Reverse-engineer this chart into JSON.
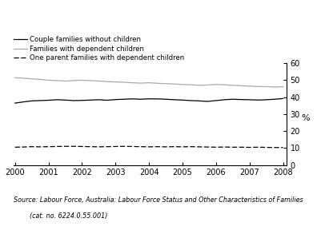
{
  "ylabel": "%",
  "xlim": [
    2000,
    2008
  ],
  "ylim": [
    0,
    60
  ],
  "yticks": [
    0,
    10,
    20,
    30,
    40,
    50,
    60
  ],
  "xticks": [
    2000,
    2001,
    2002,
    2003,
    2004,
    2005,
    2006,
    2007,
    2008
  ],
  "years": [
    2000,
    2000.25,
    2000.5,
    2000.75,
    2001,
    2001.25,
    2001.5,
    2001.75,
    2002,
    2002.25,
    2002.5,
    2002.75,
    2003,
    2003.25,
    2003.5,
    2003.75,
    2004,
    2004.25,
    2004.5,
    2004.75,
    2005,
    2005.25,
    2005.5,
    2005.75,
    2006,
    2006.25,
    2006.5,
    2006.75,
    2007,
    2007.25,
    2007.5,
    2007.75,
    2008
  ],
  "couple_no_children": [
    36.5,
    37.2,
    37.8,
    38.0,
    38.2,
    38.5,
    38.3,
    38.0,
    38.1,
    38.3,
    38.5,
    38.2,
    38.6,
    38.8,
    39.0,
    38.8,
    39.0,
    39.0,
    38.8,
    38.5,
    38.3,
    38.0,
    37.8,
    37.5,
    38.0,
    38.5,
    38.8,
    38.6,
    38.5,
    38.3,
    38.5,
    38.8,
    39.2
  ],
  "families_dependent": [
    51.5,
    51.2,
    50.8,
    50.5,
    50.0,
    49.8,
    49.5,
    49.8,
    50.0,
    49.8,
    49.5,
    49.2,
    49.0,
    48.8,
    48.5,
    48.3,
    48.5,
    48.2,
    48.0,
    47.8,
    47.5,
    47.3,
    47.0,
    47.2,
    47.5,
    47.3,
    47.0,
    46.8,
    46.5,
    46.3,
    46.2,
    46.0,
    46.2
  ],
  "one_parent": [
    10.5,
    10.6,
    10.8,
    10.7,
    10.8,
    10.9,
    11.0,
    11.0,
    10.9,
    10.8,
    10.7,
    10.8,
    10.9,
    11.0,
    10.9,
    10.8,
    10.7,
    10.8,
    10.7,
    10.8,
    10.7,
    10.8,
    10.7,
    10.6,
    10.5,
    10.6,
    10.5,
    10.5,
    10.4,
    10.5,
    10.4,
    10.3,
    10.3
  ],
  "color_couple": "#000000",
  "color_families": "#aaaaaa",
  "color_one_parent": "#000000",
  "label_couple": "Couple families without children",
  "label_families": "Families with dependent children",
  "label_one_parent": "One parent families with dependent children",
  "source_line1": "Source: Labour Force, Australia: Labour Force Status and Other Characteristics of Families",
  "source_line2": "        (cat. no. 6224.0.55.001)",
  "background_color": "#ffffff"
}
